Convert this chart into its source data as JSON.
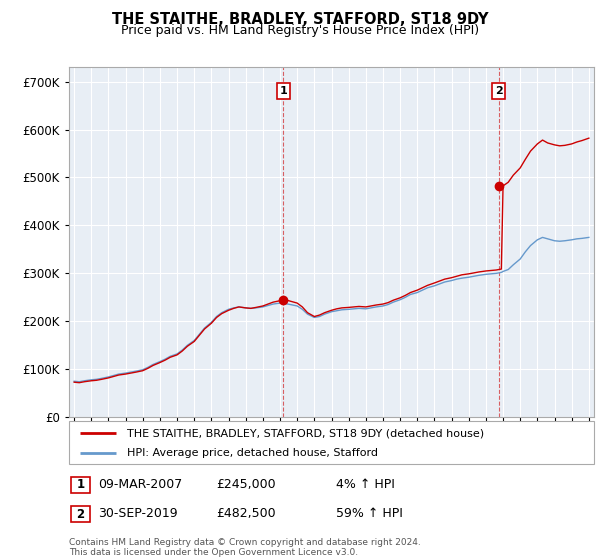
{
  "title": "THE STAITHE, BRADLEY, STAFFORD, ST18 9DY",
  "subtitle": "Price paid vs. HM Land Registry's House Price Index (HPI)",
  "ylabel_ticks": [
    0,
    100000,
    200000,
    300000,
    400000,
    500000,
    600000,
    700000
  ],
  "ylim": [
    0,
    730000
  ],
  "xlim_start": 1994.7,
  "xlim_end": 2025.3,
  "sale1_x": 2007.19,
  "sale1_y": 245000,
  "sale2_x": 2019.75,
  "sale2_y": 482500,
  "legend_line1": "THE STAITHE, BRADLEY, STAFFORD, ST18 9DY (detached house)",
  "legend_line2": "HPI: Average price, detached house, Stafford",
  "table_rows": [
    {
      "num": "1",
      "date": "09-MAR-2007",
      "price": "£245,000",
      "pct": "4% ↑ HPI"
    },
    {
      "num": "2",
      "date": "30-SEP-2019",
      "price": "£482,500",
      "pct": "59% ↑ HPI"
    }
  ],
  "footnote": "Contains HM Land Registry data © Crown copyright and database right 2024.\nThis data is licensed under the Open Government Licence v3.0.",
  "red_line_color": "#cc0000",
  "blue_line_color": "#6699cc",
  "plot_bg_color": "#e8eef5",
  "background_color": "#ffffff",
  "grid_color": "#ffffff"
}
